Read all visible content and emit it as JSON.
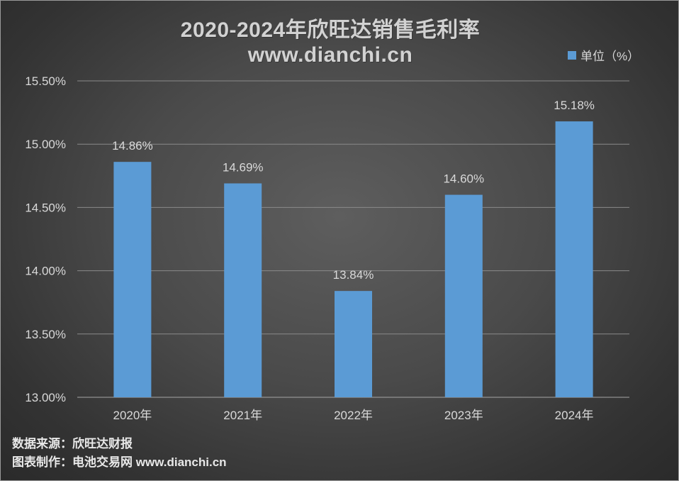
{
  "title_line1": "2020-2024年欣旺达销售毛利率",
  "title_line2": "www.dianchi.cn",
  "legend_label": "单位（%）",
  "bar_color": "#5b9bd5",
  "footer": {
    "source": "数据来源：欣旺达财报",
    "maker": "图表制作：电池交易网 www.dianchi.cn"
  },
  "chart_data": {
    "type": "bar",
    "title": "2020-2024年欣旺达销售毛利率",
    "categories": [
      "2020年",
      "2021年",
      "2022年",
      "2023年",
      "2024年"
    ],
    "series": [
      {
        "name": "单位（%）",
        "values": [
          14.86,
          14.69,
          13.84,
          14.6,
          15.18
        ]
      }
    ],
    "data_labels": [
      "14.86%",
      "14.69%",
      "13.84%",
      "14.60%",
      "15.18%"
    ],
    "ylim": [
      13.0,
      15.5
    ],
    "yticks": [
      13.0,
      13.5,
      14.0,
      14.5,
      15.0,
      15.5
    ],
    "ytick_labels": [
      "13.00%",
      "13.50%",
      "14.00%",
      "14.50%",
      "15.00%",
      "15.50%"
    ],
    "xlabel": "",
    "ylabel": "",
    "grid": true,
    "legend_position": "top-right"
  }
}
